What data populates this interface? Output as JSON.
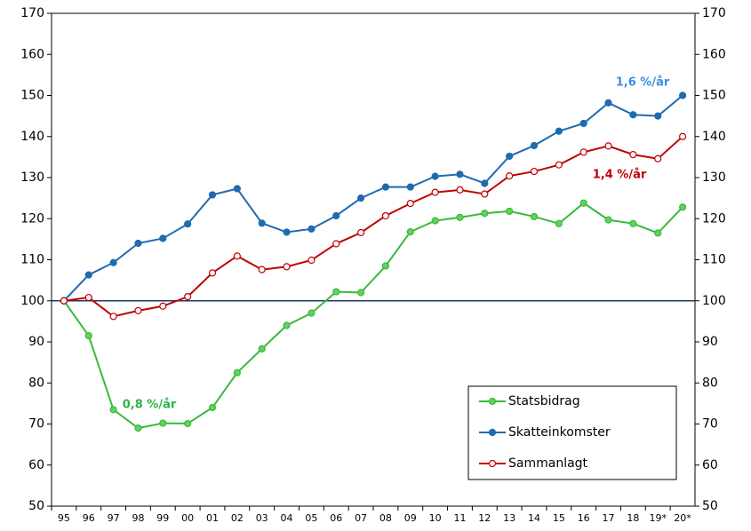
{
  "chart_data": {
    "type": "line",
    "categories": [
      "95",
      "96",
      "97",
      "98",
      "99",
      "00",
      "01",
      "02",
      "03",
      "04",
      "05",
      "06",
      "07",
      "08",
      "09",
      "10",
      "11",
      "12",
      "13",
      "14",
      "15",
      "16",
      "17",
      "18",
      "19*",
      "20*"
    ],
    "series": [
      {
        "name": "Statsbidrag",
        "color": "#3cb83c",
        "marker_fill": "#5ed35e",
        "values": [
          100,
          91.5,
          73.5,
          69,
          70.2,
          70.1,
          74,
          82.5,
          88.3,
          94,
          97,
          102.2,
          102,
          108.5,
          116.8,
          119.5,
          120.3,
          121.3,
          121.8,
          120.5,
          118.8,
          123.8,
          119.7,
          118.8,
          116.5,
          122.8
        ]
      },
      {
        "name": "Skatteinkomster",
        "color": "#1f6bb0",
        "marker_fill": "#1f6bb0",
        "values": [
          100,
          106.3,
          109.3,
          114,
          115.2,
          118.7,
          125.8,
          127.3,
          118.9,
          116.7,
          117.5,
          120.7,
          125,
          127.7,
          127.7,
          130.3,
          130.8,
          128.6,
          135.2,
          137.8,
          141.3,
          143.2,
          148.2,
          145.3,
          145,
          150
        ]
      },
      {
        "name": "Sammanlagt",
        "color": "#c00000",
        "marker_fill": "#ffffff",
        "values": [
          100,
          100.8,
          96.2,
          97.6,
          98.7,
          101,
          106.8,
          110.9,
          107.6,
          108.3,
          109.9,
          113.9,
          116.6,
          120.7,
          123.7,
          126.4,
          127,
          126,
          130.4,
          131.5,
          133.1,
          136.2,
          137.7,
          135.6,
          134.6,
          140
        ]
      }
    ],
    "ylim": [
      50,
      170
    ],
    "yticks": [
      50,
      60,
      70,
      80,
      90,
      100,
      110,
      120,
      130,
      140,
      150,
      160,
      170
    ],
    "y2lim": [
      50,
      170
    ],
    "y2ticks": [
      50,
      60,
      70,
      80,
      90,
      100,
      110,
      120,
      130,
      140,
      150,
      160,
      170
    ],
    "reference_line": 100,
    "reference_color": "#1f3864",
    "legend": "lower right",
    "annotations": [
      {
        "text": "1,6 %/år",
        "color": "#3a8ee6"
      },
      {
        "text": "1,4 %/år",
        "color": "#c00000"
      },
      {
        "text": "0,8 %/år",
        "color": "#2db34a"
      }
    ]
  }
}
